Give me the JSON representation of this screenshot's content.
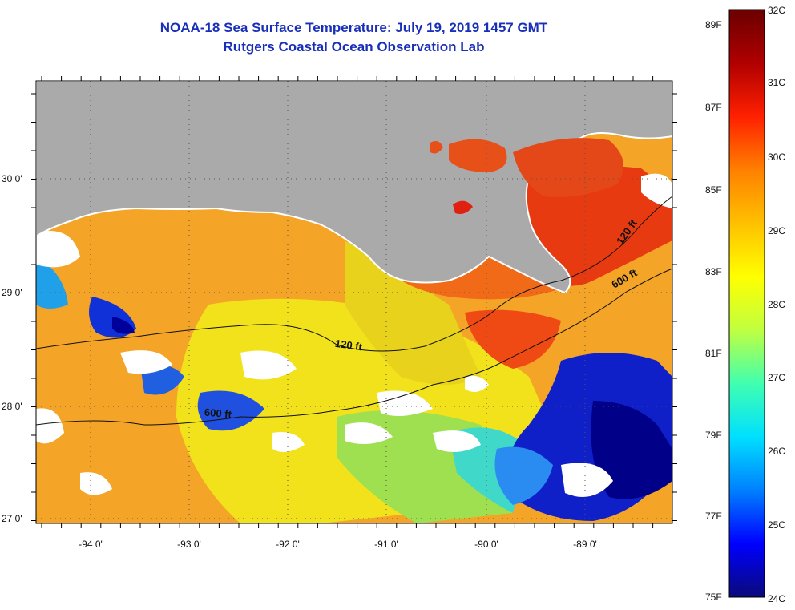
{
  "title": {
    "line1": "NOAA-18 Sea Surface Temperature:  July 19, 2019 1457 GMT",
    "line2": "Rutgers Coastal Ocean Observation Lab"
  },
  "map": {
    "latitude_labels": [
      "30 0'",
      "29 0'",
      "28 0'",
      "27 0'"
    ],
    "longitude_labels": [
      "-94 0'",
      "-93 0'",
      "-92 0'",
      "-91 0'",
      "-90 0'",
      "-89 0'"
    ],
    "contour_labels": {
      "c120_center": "120 ft",
      "c600_left": "600 ft",
      "c600_right": "600 ft",
      "c120_right": "120 ft"
    },
    "colors": {
      "land": "#aaaaaa",
      "sea_base": "#f4a426",
      "frame": "#000000"
    }
  },
  "colorbar": {
    "fahrenheit_labels": [
      "89F",
      "87F",
      "85F",
      "83F",
      "81F",
      "79F",
      "77F",
      "75F"
    ],
    "celsius_labels": [
      "32C",
      "31C",
      "30C",
      "29C",
      "28C",
      "27C",
      "26C",
      "25C",
      "24C"
    ],
    "stops": [
      "#0a0a7a",
      "#0000ff",
      "#0080ff",
      "#00e0ff",
      "#40ffb0",
      "#c0ff40",
      "#ffff00",
      "#ffc000",
      "#ff8000",
      "#ff2000",
      "#b00000",
      "#6a0000"
    ]
  }
}
